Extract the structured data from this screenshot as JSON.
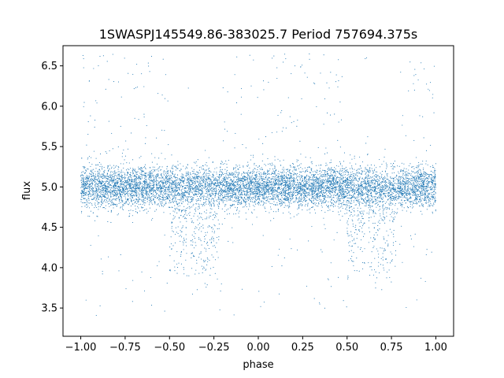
{
  "chart_data": {
    "type": "scatter",
    "title": "1SWASPJ145549.86-383025.7 Period 757694.375s",
    "xlabel": "phase",
    "ylabel": "flux",
    "xlim": [
      -1.1,
      1.1
    ],
    "ylim": [
      3.15,
      6.75
    ],
    "x_ticks": [
      -1.0,
      -0.75,
      -0.5,
      -0.25,
      0.0,
      0.25,
      0.5,
      0.75,
      1.0
    ],
    "x_tick_labels": [
      "−1.00",
      "−0.75",
      "−0.50",
      "−0.25",
      "0.00",
      "0.25",
      "0.50",
      "0.75",
      "1.00"
    ],
    "y_ticks": [
      3.5,
      4.0,
      4.5,
      5.0,
      5.5,
      6.0,
      6.5
    ],
    "y_tick_labels": [
      "3.5",
      "4.0",
      "4.5",
      "5.0",
      "5.5",
      "6.0",
      "6.5"
    ],
    "grid": false,
    "legend": "none",
    "series_color": "#1f77b4",
    "light_curve": {
      "phase_range": [
        -1.0,
        1.0
      ],
      "baseline_flux": 5.0,
      "baseline_scatter": 0.13,
      "primary_eclipse": {
        "phase": -0.3,
        "width": 0.08,
        "min_flux": 3.8
      },
      "secondary_eclipse": {
        "phase": -0.45,
        "width": 0.05,
        "min_flux": 3.9
      },
      "repeat_every_phase": 1.0,
      "flux_range": [
        3.3,
        6.65
      ]
    }
  }
}
